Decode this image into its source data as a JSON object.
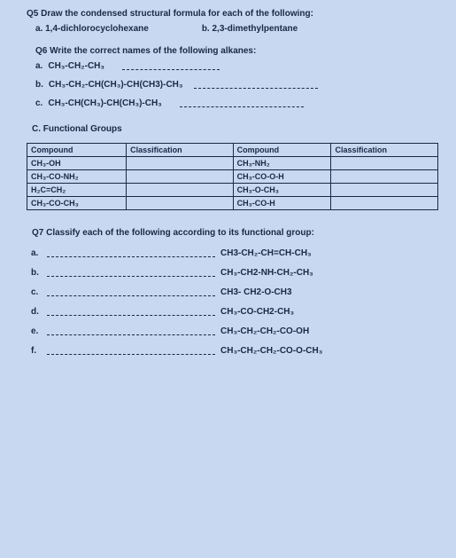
{
  "q5": {
    "header": "Q5 Draw the condensed structural formula for each of the following:",
    "a": "a.   1,4-dichlorocyclohexane",
    "b": "b. 2,3-dimethylpentane"
  },
  "q6": {
    "header": "Q6 Write the correct names of the following alkanes:",
    "a_label": "a.",
    "a_formula": "CH₃-CH₂-CH₃",
    "b_label": "b.",
    "b_formula": "CH₃-CH₂-CH(CH₃)-CH(CH3)-CH₃",
    "c_label": "c.",
    "c_formula": "CH₃-CH(CH₃)-CH(CH₃)-CH₃"
  },
  "sectionC": "C.   Functional Groups",
  "table": {
    "headers": [
      "Compound",
      "Classification",
      "Compound",
      "Classification"
    ],
    "rows": [
      [
        "CH₃-OH",
        "",
        "CH₃-NH₂",
        ""
      ],
      [
        "CH₃-CO-NH₂",
        "",
        "CH₃-CO-O-H",
        ""
      ],
      [
        "H₂C=CH₂",
        "",
        "CH₃-O-CH₃",
        ""
      ],
      [
        "CH₃-CO-CH₃",
        "",
        "CH₃-CO-H",
        ""
      ]
    ]
  },
  "q7": {
    "header": "Q7 Classify each of the following according to its functional group:",
    "items": [
      {
        "label": "a.",
        "formula": "CH3-CH₂-CH=CH-CH₃"
      },
      {
        "label": "b.",
        "formula": "CH₃-CH2-NH-CH₂-CH₃"
      },
      {
        "label": "c.",
        "formula": "CH3- CH2-O-CH3"
      },
      {
        "label": "d.",
        "formula": "CH₃-CO-CH2-CH₃"
      },
      {
        "label": "e.",
        "formula": "CH₃-CH₂-CH₂-CO-OH"
      },
      {
        "label": "f.",
        "formula": "CH₃-CH₂-CH₂-CO-O-CH₃"
      }
    ]
  }
}
